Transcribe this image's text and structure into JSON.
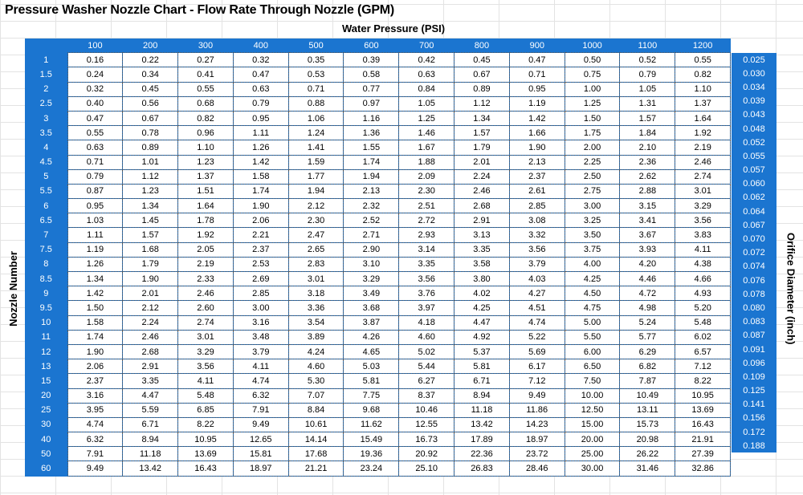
{
  "title": "Pressure Washer Nozzle Chart - Flow Rate Through Nozzle (GPM)",
  "water_pressure_label": "Water Pressure (PSI)",
  "nozzle_number_label": "Nozzle Number",
  "orifice_diameter_label": "Orifice Diameter (inch)",
  "colors": {
    "header_blue": "#1b75d0"
  },
  "pressures": [
    "100",
    "200",
    "300",
    "400",
    "500",
    "600",
    "700",
    "800",
    "900",
    "1000",
    "1100",
    "1200"
  ],
  "rows": [
    {
      "nozzle": "1",
      "orifice": "0.025",
      "values": [
        "0.16",
        "0.22",
        "0.27",
        "0.32",
        "0.35",
        "0.39",
        "0.42",
        "0.45",
        "0.47",
        "0.50",
        "0.52",
        "0.55"
      ]
    },
    {
      "nozzle": "1.5",
      "orifice": "0.030",
      "values": [
        "0.24",
        "0.34",
        "0.41",
        "0.47",
        "0.53",
        "0.58",
        "0.63",
        "0.67",
        "0.71",
        "0.75",
        "0.79",
        "0.82"
      ]
    },
    {
      "nozzle": "2",
      "orifice": "0.034",
      "values": [
        "0.32",
        "0.45",
        "0.55",
        "0.63",
        "0.71",
        "0.77",
        "0.84",
        "0.89",
        "0.95",
        "1.00",
        "1.05",
        "1.10"
      ]
    },
    {
      "nozzle": "2.5",
      "orifice": "0.039",
      "values": [
        "0.40",
        "0.56",
        "0.68",
        "0.79",
        "0.88",
        "0.97",
        "1.05",
        "1.12",
        "1.19",
        "1.25",
        "1.31",
        "1.37"
      ]
    },
    {
      "nozzle": "3",
      "orifice": "0.043",
      "values": [
        "0.47",
        "0.67",
        "0.82",
        "0.95",
        "1.06",
        "1.16",
        "1.25",
        "1.34",
        "1.42",
        "1.50",
        "1.57",
        "1.64"
      ]
    },
    {
      "nozzle": "3.5",
      "orifice": "0.048",
      "values": [
        "0.55",
        "0.78",
        "0.96",
        "1.11",
        "1.24",
        "1.36",
        "1.46",
        "1.57",
        "1.66",
        "1.75",
        "1.84",
        "1.92"
      ]
    },
    {
      "nozzle": "4",
      "orifice": "0.052",
      "values": [
        "0.63",
        "0.89",
        "1.10",
        "1.26",
        "1.41",
        "1.55",
        "1.67",
        "1.79",
        "1.90",
        "2.00",
        "2.10",
        "2.19"
      ]
    },
    {
      "nozzle": "4.5",
      "orifice": "0.055",
      "values": [
        "0.71",
        "1.01",
        "1.23",
        "1.42",
        "1.59",
        "1.74",
        "1.88",
        "2.01",
        "2.13",
        "2.25",
        "2.36",
        "2.46"
      ]
    },
    {
      "nozzle": "5",
      "orifice": "0.057",
      "values": [
        "0.79",
        "1.12",
        "1.37",
        "1.58",
        "1.77",
        "1.94",
        "2.09",
        "2.24",
        "2.37",
        "2.50",
        "2.62",
        "2.74"
      ]
    },
    {
      "nozzle": "5.5",
      "orifice": "0.060",
      "values": [
        "0.87",
        "1.23",
        "1.51",
        "1.74",
        "1.94",
        "2.13",
        "2.30",
        "2.46",
        "2.61",
        "2.75",
        "2.88",
        "3.01"
      ]
    },
    {
      "nozzle": "6",
      "orifice": "0.062",
      "values": [
        "0.95",
        "1.34",
        "1.64",
        "1.90",
        "2.12",
        "2.32",
        "2.51",
        "2.68",
        "2.85",
        "3.00",
        "3.15",
        "3.29"
      ]
    },
    {
      "nozzle": "6.5",
      "orifice": "0.064",
      "values": [
        "1.03",
        "1.45",
        "1.78",
        "2.06",
        "2.30",
        "2.52",
        "2.72",
        "2.91",
        "3.08",
        "3.25",
        "3.41",
        "3.56"
      ]
    },
    {
      "nozzle": "7",
      "orifice": "0.067",
      "values": [
        "1.11",
        "1.57",
        "1.92",
        "2.21",
        "2.47",
        "2.71",
        "2.93",
        "3.13",
        "3.32",
        "3.50",
        "3.67",
        "3.83"
      ]
    },
    {
      "nozzle": "7.5",
      "orifice": "0.070",
      "values": [
        "1.19",
        "1.68",
        "2.05",
        "2.37",
        "2.65",
        "2.90",
        "3.14",
        "3.35",
        "3.56",
        "3.75",
        "3.93",
        "4.11"
      ]
    },
    {
      "nozzle": "8",
      "orifice": "0.072",
      "values": [
        "1.26",
        "1.79",
        "2.19",
        "2.53",
        "2.83",
        "3.10",
        "3.35",
        "3.58",
        "3.79",
        "4.00",
        "4.20",
        "4.38"
      ]
    },
    {
      "nozzle": "8.5",
      "orifice": "0.074",
      "values": [
        "1.34",
        "1.90",
        "2.33",
        "2.69",
        "3.01",
        "3.29",
        "3.56",
        "3.80",
        "4.03",
        "4.25",
        "4.46",
        "4.66"
      ]
    },
    {
      "nozzle": "9",
      "orifice": "0.076",
      "values": [
        "1.42",
        "2.01",
        "2.46",
        "2.85",
        "3.18",
        "3.49",
        "3.76",
        "4.02",
        "4.27",
        "4.50",
        "4.72",
        "4.93"
      ]
    },
    {
      "nozzle": "9.5",
      "orifice": "0.078",
      "values": [
        "1.50",
        "2.12",
        "2.60",
        "3.00",
        "3.36",
        "3.68",
        "3.97",
        "4.25",
        "4.51",
        "4.75",
        "4.98",
        "5.20"
      ]
    },
    {
      "nozzle": "10",
      "orifice": "0.080",
      "values": [
        "1.58",
        "2.24",
        "2.74",
        "3.16",
        "3.54",
        "3.87",
        "4.18",
        "4.47",
        "4.74",
        "5.00",
        "5.24",
        "5.48"
      ]
    },
    {
      "nozzle": "11",
      "orifice": "0.083",
      "values": [
        "1.74",
        "2.46",
        "3.01",
        "3.48",
        "3.89",
        "4.26",
        "4.60",
        "4.92",
        "5.22",
        "5.50",
        "5.77",
        "6.02"
      ]
    },
    {
      "nozzle": "12",
      "orifice": "0.087",
      "values": [
        "1.90",
        "2.68",
        "3.29",
        "3.79",
        "4.24",
        "4.65",
        "5.02",
        "5.37",
        "5.69",
        "6.00",
        "6.29",
        "6.57"
      ]
    },
    {
      "nozzle": "13",
      "orifice": "0.091",
      "values": [
        "2.06",
        "2.91",
        "3.56",
        "4.11",
        "4.60",
        "5.03",
        "5.44",
        "5.81",
        "6.17",
        "6.50",
        "6.82",
        "7.12"
      ]
    },
    {
      "nozzle": "15",
      "orifice": "0.096",
      "values": [
        "2.37",
        "3.35",
        "4.11",
        "4.74",
        "5.30",
        "5.81",
        "6.27",
        "6.71",
        "7.12",
        "7.50",
        "7.87",
        "8.22"
      ]
    },
    {
      "nozzle": "20",
      "orifice": "0.109",
      "values": [
        "3.16",
        "4.47",
        "5.48",
        "6.32",
        "7.07",
        "7.75",
        "8.37",
        "8.94",
        "9.49",
        "10.00",
        "10.49",
        "10.95"
      ]
    },
    {
      "nozzle": "25",
      "orifice": "0.125",
      "values": [
        "3.95",
        "5.59",
        "6.85",
        "7.91",
        "8.84",
        "9.68",
        "10.46",
        "11.18",
        "11.86",
        "12.50",
        "13.11",
        "13.69"
      ]
    },
    {
      "nozzle": "30",
      "orifice": "0.141",
      "values": [
        "4.74",
        "6.71",
        "8.22",
        "9.49",
        "10.61",
        "11.62",
        "12.55",
        "13.42",
        "14.23",
        "15.00",
        "15.73",
        "16.43"
      ]
    },
    {
      "nozzle": "40",
      "orifice": "0.156",
      "values": [
        "6.32",
        "8.94",
        "10.95",
        "12.65",
        "14.14",
        "15.49",
        "16.73",
        "17.89",
        "18.97",
        "20.00",
        "20.98",
        "21.91"
      ]
    },
    {
      "nozzle": "50",
      "orifice": "0.172",
      "values": [
        "7.91",
        "11.18",
        "13.69",
        "15.81",
        "17.68",
        "19.36",
        "20.92",
        "22.36",
        "23.72",
        "25.00",
        "26.22",
        "27.39"
      ]
    },
    {
      "nozzle": "60",
      "orifice": "0.188",
      "values": [
        "9.49",
        "13.42",
        "16.43",
        "18.97",
        "21.21",
        "23.24",
        "25.10",
        "26.83",
        "28.46",
        "30.00",
        "31.46",
        "32.86"
      ]
    }
  ]
}
